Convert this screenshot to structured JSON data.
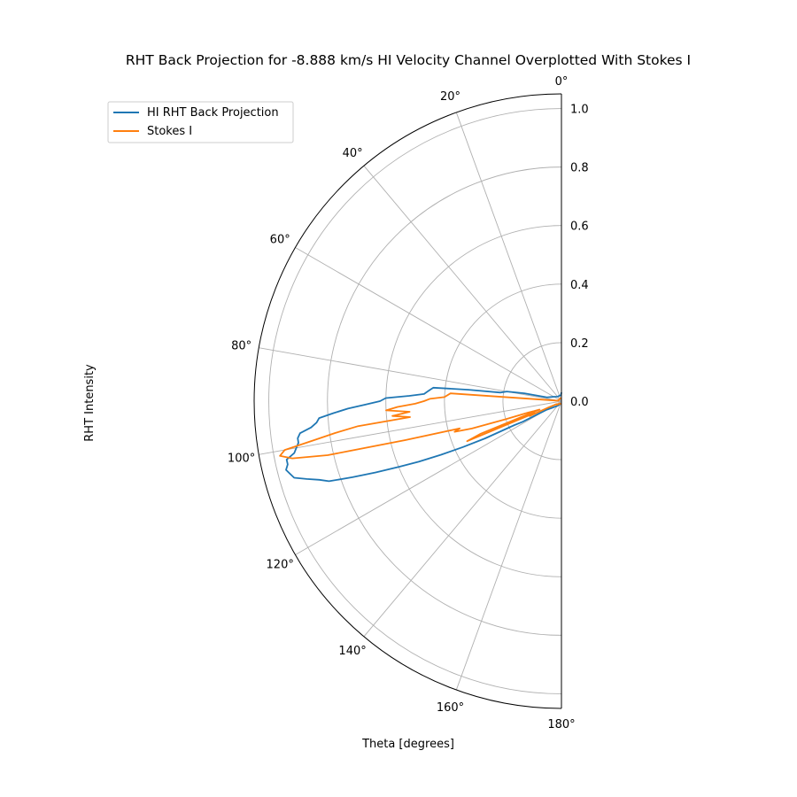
{
  "chart_data": {
    "type": "line",
    "projection": "polar",
    "title": "RHT Back Projection for -8.888 km/s HI Velocity Channel Overplotted With Stokes I",
    "xlabel": "Theta [degrees]",
    "ylabel": "RHT Intensity",
    "theta_range_deg": [
      0,
      180
    ],
    "theta_zero": "top",
    "theta_direction": "counter-clockwise",
    "rlim": [
      0,
      1.05
    ],
    "angle_ticks_deg": [
      0,
      20,
      40,
      60,
      80,
      100,
      120,
      140,
      160,
      180
    ],
    "angle_tick_labels": [
      "0°",
      "20°",
      "40°",
      "60°",
      "80°",
      "100°",
      "120°",
      "140°",
      "160°",
      "180°"
    ],
    "r_ticks": [
      0.0,
      0.2,
      0.4,
      0.6,
      0.8,
      1.0
    ],
    "r_tick_labels": [
      "0.0",
      "0.2",
      "0.4",
      "0.6",
      "0.8",
      "1.0"
    ],
    "grid": true,
    "legend_position": "top-left",
    "series": [
      {
        "name": "HI RHT Back Projection",
        "color": "#1f77b4",
        "theta_deg": [
          0,
          5,
          10,
          20,
          40,
          60,
          75,
          78,
          80,
          81,
          82,
          83,
          84,
          85,
          86,
          87,
          88,
          89,
          90,
          91,
          92,
          93,
          94,
          95,
          96,
          97,
          98,
          99,
          100,
          101,
          102,
          103,
          104,
          105,
          106,
          107,
          108,
          109,
          110,
          111,
          112,
          113,
          114,
          115,
          116,
          117,
          118,
          120,
          125,
          130,
          140,
          160,
          180
        ],
        "r": [
          0.03,
          0.02,
          0.02,
          0.02,
          0.02,
          0.03,
          0.05,
          0.13,
          0.19,
          0.2,
          0.21,
          0.32,
          0.44,
          0.45,
          0.46,
          0.47,
          0.52,
          0.6,
          0.62,
          0.67,
          0.73,
          0.78,
          0.83,
          0.84,
          0.86,
          0.9,
          0.91,
          0.91,
          0.92,
          0.93,
          0.96,
          0.96,
          0.97,
          0.96,
          0.95,
          0.91,
          0.87,
          0.84,
          0.76,
          0.68,
          0.6,
          0.53,
          0.45,
          0.37,
          0.29,
          0.18,
          0.15,
          0.06,
          0.04,
          0.03,
          0.02,
          0.01,
          0.01
        ]
      },
      {
        "name": "Stokes I",
        "color": "#ff7f0e",
        "theta_deg": [
          0,
          10,
          30,
          60,
          80,
          84,
          86,
          88,
          89,
          90,
          91,
          92,
          93,
          94,
          95,
          96,
          97,
          98,
          99,
          100,
          101,
          102,
          103,
          104,
          105,
          106,
          107,
          108,
          109,
          110,
          111,
          112,
          113,
          114,
          115,
          116,
          118,
          120,
          125,
          130,
          140,
          160,
          180
        ],
        "r": [
          0.01,
          0.01,
          0.01,
          0.01,
          0.01,
          0.02,
          0.38,
          0.4,
          0.45,
          0.47,
          0.5,
          0.56,
          0.6,
          0.52,
          0.58,
          0.52,
          0.7,
          0.78,
          0.86,
          0.96,
          0.98,
          0.94,
          0.82,
          0.55,
          0.36,
          0.38,
          0.32,
          0.2,
          0.12,
          0.1,
          0.08,
          0.3,
          0.35,
          0.1,
          0.12,
          0.05,
          0.03,
          0.02,
          0.02,
          0.02,
          0.01,
          0.01,
          0.01
        ]
      }
    ]
  }
}
